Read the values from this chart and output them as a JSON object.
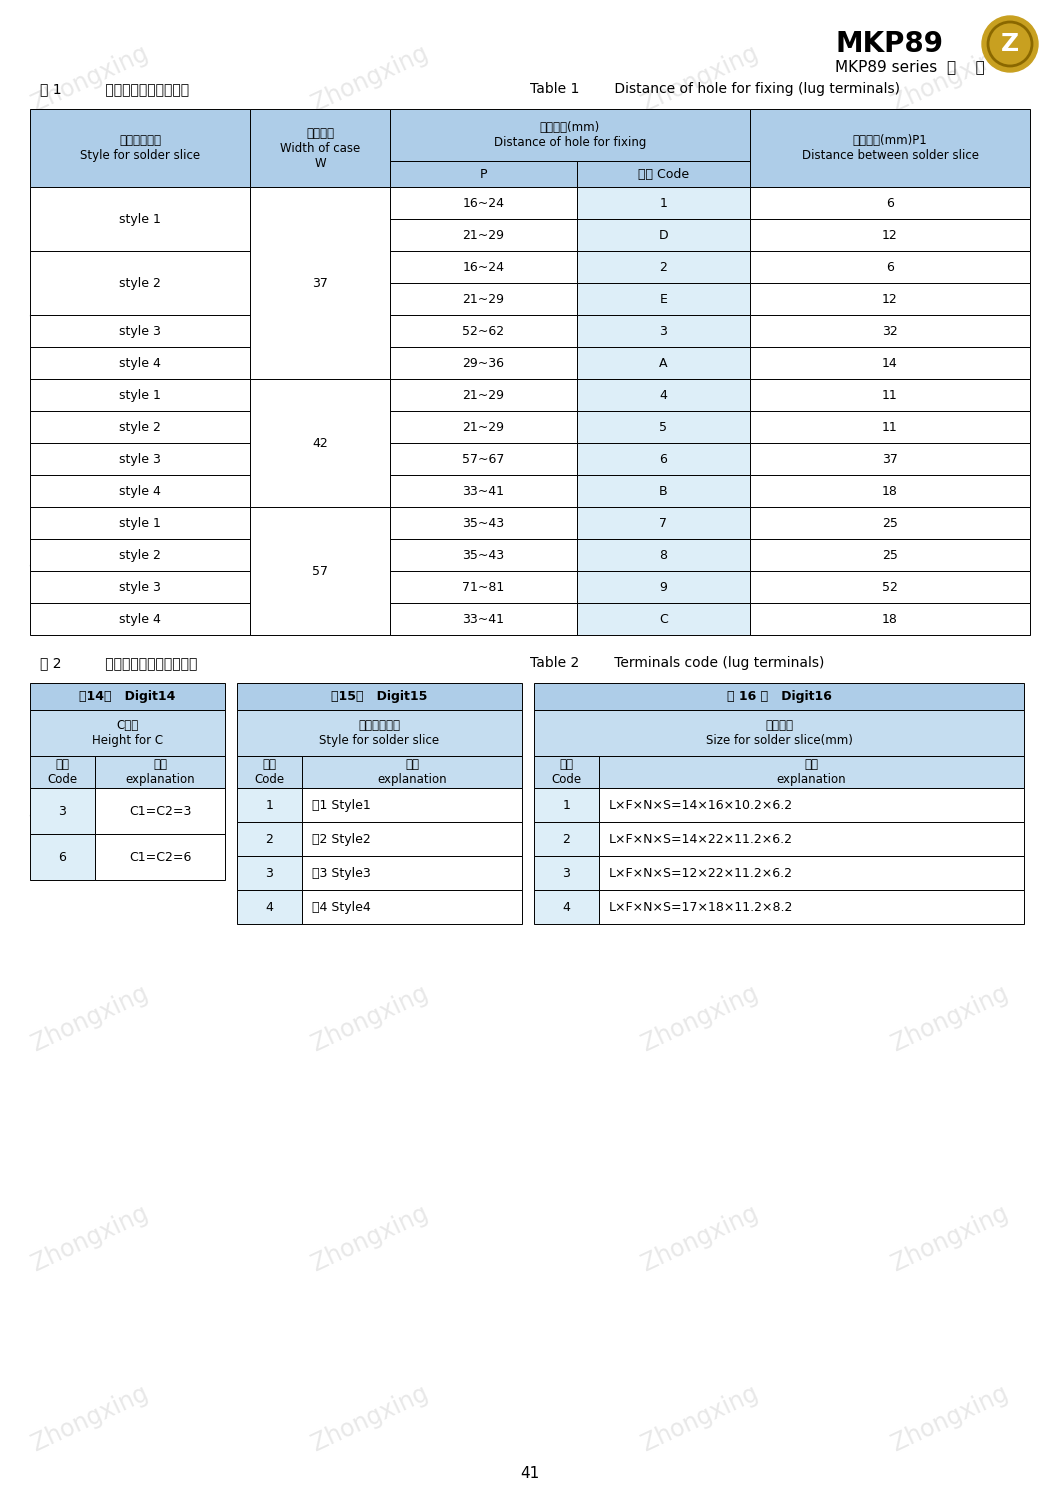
{
  "page_bg": "#ffffff",
  "header_bg": "#aecde8",
  "subheader_bg": "#c5ddf0",
  "cell_bg_white": "#ffffff",
  "cell_bg_light": "#ddeef8",
  "border_color": "#000000",
  "text_color": "#000000",
  "title_product": "MKP89",
  "table1_label_cn": "表 1          安装孔距（接线片式）",
  "table1_label_en": "Table 1        Distance of hole for fixing (lug terminals)",
  "table2_label_cn": "表 2          引出端代码（接线片式）",
  "table2_label_en": "Table 2        Terminals code (lug terminals)",
  "t1_rows": [
    [
      "style 1",
      "37",
      "16~24",
      "1",
      "6"
    ],
    [
      "style 1",
      "37",
      "21~29",
      "D",
      "12"
    ],
    [
      "style 2",
      "37",
      "16~24",
      "2",
      "6"
    ],
    [
      "style 2",
      "37",
      "21~29",
      "E",
      "12"
    ],
    [
      "style 3",
      "37",
      "52~62",
      "3",
      "32"
    ],
    [
      "style 4",
      "37",
      "29~36",
      "A",
      "14"
    ],
    [
      "style 1",
      "42",
      "21~29",
      "4",
      "11"
    ],
    [
      "style 2",
      "42",
      "21~29",
      "5",
      "11"
    ],
    [
      "style 3",
      "42",
      "57~67",
      "6",
      "37"
    ],
    [
      "style 4",
      "42",
      "33~41",
      "B",
      "18"
    ],
    [
      "style 1",
      "57",
      "35~43",
      "7",
      "25"
    ],
    [
      "style 2",
      "57",
      "35~43",
      "8",
      "25"
    ],
    [
      "style 3",
      "57",
      "71~81",
      "9",
      "52"
    ],
    [
      "style 4",
      "57",
      "33~41",
      "C",
      "18"
    ]
  ],
  "t2_digit14_header": "第14位   Digit14",
  "t2_digit14_subheader": "C高度\nHeight for C",
  "t2_digit14_rows": [
    [
      "3",
      "C1=C2=3"
    ],
    [
      "6",
      "C1=C2=6"
    ]
  ],
  "t2_digit15_header": "第15位   Digit15",
  "t2_digit15_subheader": "焉片引出方式\nStyle for solder slice",
  "t2_digit15_rows": [
    [
      "1",
      "图1 Style1"
    ],
    [
      "2",
      "图2 Style2"
    ],
    [
      "3",
      "图3 Style3"
    ],
    [
      "4",
      "图4 Style4"
    ]
  ],
  "t2_digit16_header": "第 16 位   Digit16",
  "t2_digit16_subheader": "焉片尺寸\nSize for solder slice(mm)",
  "t2_digit16_rows": [
    [
      "1",
      "L×F×N×S=14×16×10.2×6.2"
    ],
    [
      "2",
      "L×F×N×S=14×22×11.2×6.2"
    ],
    [
      "3",
      "L×F×N×S=12×22×11.2×6.2"
    ],
    [
      "4",
      "L×F×N×S=17×18×11.2×8.2"
    ]
  ],
  "page_number": "41"
}
